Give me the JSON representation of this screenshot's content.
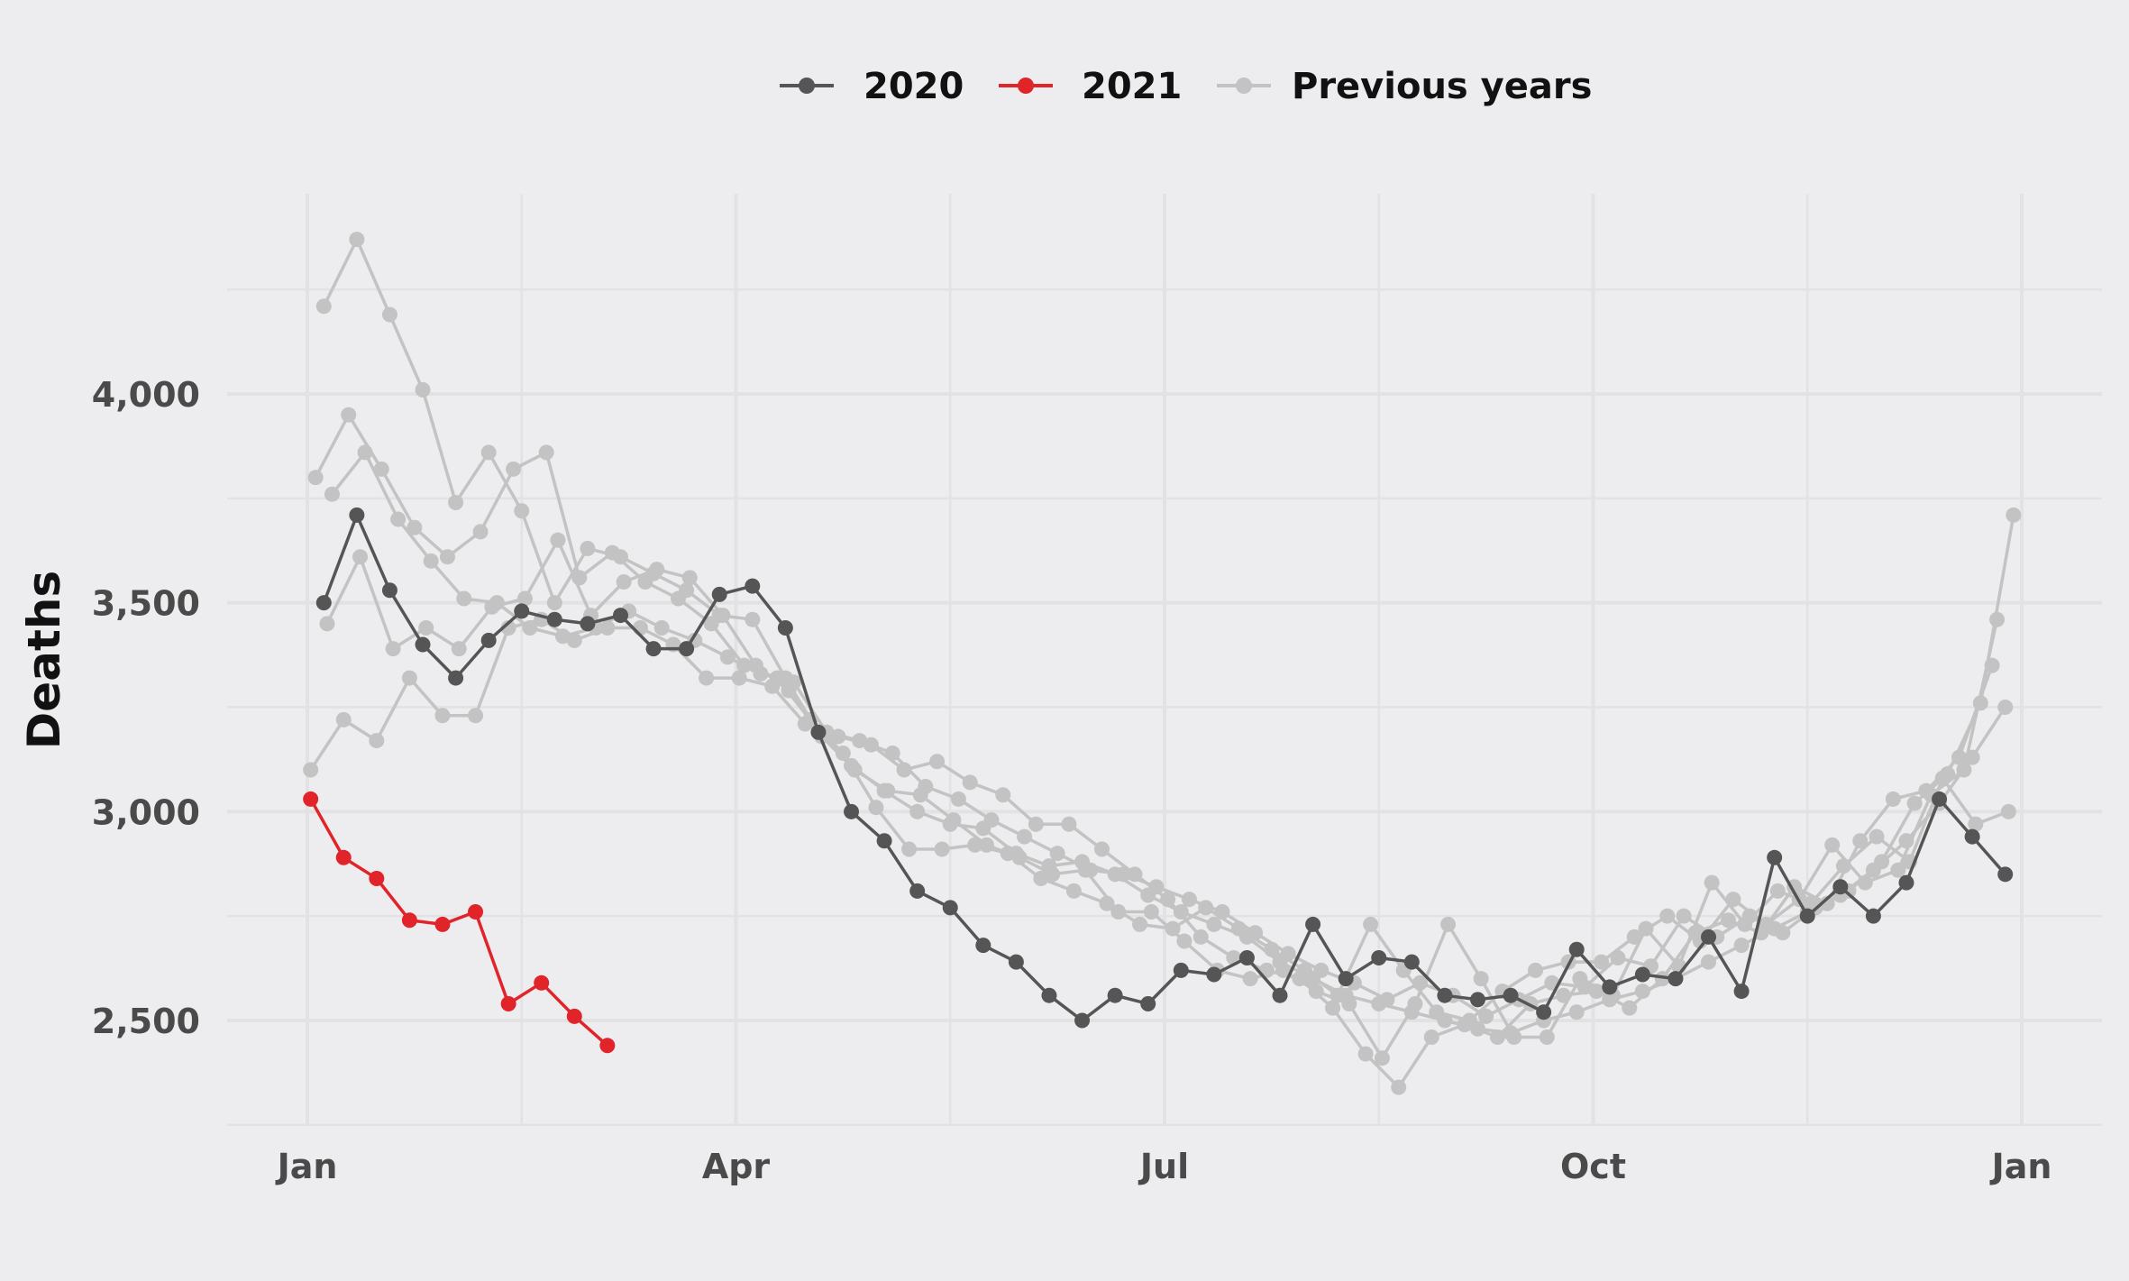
{
  "chart_data": {
    "type": "line",
    "title": "",
    "xlabel": "",
    "ylabel": "Deaths",
    "x_unit": "week of year",
    "xlim": [
      1,
      53
    ],
    "ylim": [
      2230,
      4480
    ],
    "grid": true,
    "legend_position": "top",
    "x_ticks": [
      {
        "label": "Jan",
        "value": 1
      },
      {
        "label": "Apr",
        "value": 14
      },
      {
        "label": "Jul",
        "value": 27
      },
      {
        "label": "Oct",
        "value": 40
      },
      {
        "label": "Jan",
        "value": 53
      }
    ],
    "y_ticks": [
      {
        "label": "2,500",
        "value": 2500
      },
      {
        "label": "3,000",
        "value": 3000
      },
      {
        "label": "3,500",
        "value": 3500
      },
      {
        "label": "4,000",
        "value": 4000
      }
    ],
    "legend": [
      {
        "label": "2020",
        "color": "#555555"
      },
      {
        "label": "2021",
        "color": "#e0242a"
      },
      {
        "label": "Previous years",
        "color": "#c3c3c3"
      }
    ],
    "series": [
      {
        "group": "Previous years",
        "color": "#c3c3c3",
        "x": [
          1.5,
          2.5,
          3.5,
          4.5,
          5.5,
          6.5,
          7.5,
          8.5,
          9.5,
          10.5,
          11.5,
          12.5,
          13.5,
          14.5,
          15.5,
          16.5,
          17.5,
          18.5,
          19.5,
          20.5,
          21.5,
          22.5,
          23.5,
          24.5,
          25.5,
          26.5,
          27.5,
          28.5,
          29.5,
          30.5,
          31.5,
          32.5,
          33.5,
          34.5,
          35.5,
          36.5,
          37.5,
          38.5,
          39.5,
          40.5,
          41.5,
          42.5,
          43.5,
          44.5,
          45.5,
          46.5,
          47.5,
          48.5,
          49.5,
          50.5,
          51.5,
          52.5
        ],
        "y": [
          4210,
          4370,
          4190,
          4010,
          3740,
          3860,
          3720,
          3500,
          3630,
          3610,
          3570,
          3530,
          3470,
          3460,
          3320,
          3190,
          3110,
          3050,
          3000,
          2970,
          2960,
          2900,
          2870,
          2880,
          2850,
          2800,
          2760,
          2730,
          2700,
          2640,
          2600,
          2560,
          2540,
          2520,
          2500,
          2480,
          2470,
          2500,
          2520,
          2550,
          2570,
          2600,
          2640,
          2680,
          2720,
          2760,
          2800,
          2860,
          2930,
          3020,
          3130,
          3250
        ]
      },
      {
        "group": "Previous years",
        "color": "#c3c3c3",
        "x": [
          1.25,
          2.25,
          3.25,
          4.25,
          5.25,
          6.25,
          7.25,
          8.25,
          9.25,
          10.25,
          11.25,
          12.25,
          13.25,
          14.25,
          15.25,
          16.25,
          17.25,
          18.25,
          19.25,
          20.25,
          21.25,
          22.25,
          23.25,
          24.25,
          25.25,
          26.25,
          27.25,
          28.25,
          29.25,
          30.25,
          31.25,
          32.25,
          33.25,
          34.25,
          35.25,
          36.25,
          37.25,
          38.25,
          39.25,
          40.25,
          41.25,
          42.25,
          43.25,
          44.25,
          45.25,
          46.25,
          47.25,
          48.25,
          49.25,
          50.25,
          51.25,
          52.25
        ],
        "y": [
          3800,
          3950,
          3820,
          3680,
          3610,
          3670,
          3820,
          3860,
          3560,
          3620,
          3550,
          3510,
          3450,
          3350,
          3320,
          3220,
          3140,
          3010,
          2910,
          2910,
          2920,
          2900,
          2840,
          2810,
          2780,
          2730,
          2720,
          2770,
          2720,
          2670,
          2620,
          2560,
          2730,
          2620,
          2520,
          2500,
          2570,
          2620,
          2640,
          2640,
          2700,
          2750,
          2690,
          2790,
          2730,
          2790,
          2920,
          2830,
          2860,
          3040,
          3100,
          3460
        ]
      },
      {
        "group": "Previous years",
        "color": "#c3c3c3",
        "x": [
          1.75,
          2.75,
          3.75,
          4.75,
          5.75,
          6.75,
          7.75,
          8.75,
          9.75,
          10.75,
          11.75,
          12.75,
          13.75,
          14.75,
          15.75,
          16.75,
          17.75,
          18.75,
          19.75,
          20.75,
          21.75,
          22.75,
          23.75,
          24.75,
          25.75,
          26.75,
          27.75,
          28.75,
          29.75,
          30.75,
          31.75,
          32.75,
          33.75,
          34.75,
          35.75,
          36.75,
          37.75,
          38.75,
          39.75,
          40.75,
          41.75,
          42.75,
          43.75,
          44.75,
          45.75,
          46.75,
          47.75,
          48.75,
          49.75,
          50.75,
          51.75,
          52.75
        ],
        "y": [
          3760,
          3860,
          3700,
          3600,
          3510,
          3500,
          3440,
          3420,
          3440,
          3480,
          3440,
          3410,
          3370,
          3330,
          3310,
          3190,
          3170,
          3140,
          3060,
          3030,
          2980,
          2940,
          2900,
          2860,
          2850,
          2820,
          2790,
          2760,
          2710,
          2660,
          2620,
          2590,
          2550,
          2590,
          2560,
          2510,
          2550,
          2590,
          2580,
          2650,
          2630,
          2750,
          2700,
          2750,
          2710,
          2770,
          2810,
          2880,
          3020,
          3090,
          3260,
          3710
        ]
      },
      {
        "group": "Previous years",
        "color": "#c3c3c3",
        "x": [
          1.1,
          2.1,
          3.1,
          4.1,
          5.1,
          6.1,
          7.1,
          8.1,
          9.1,
          10.1,
          11.1,
          12.1,
          13.1,
          14.1,
          15.1,
          16.1,
          17.1,
          18.1,
          19.1,
          20.1,
          21.1,
          22.1,
          23.1,
          24.1,
          25.1,
          26.1,
          27.1,
          28.1,
          29.1,
          30.1,
          31.1,
          32.1,
          33.1,
          34.1,
          35.1,
          36.1,
          37.1,
          38.1,
          39.1,
          40.1,
          41.1,
          42.1,
          43.1,
          44.1,
          45.1,
          46.1,
          47.1,
          48.1,
          49.1,
          50.1,
          51.1,
          52.1
        ],
        "y": [
          3100,
          3220,
          3170,
          3320,
          3230,
          3230,
          3440,
          3460,
          3410,
          3440,
          3440,
          3400,
          3320,
          3320,
          3300,
          3210,
          3180,
          3160,
          3100,
          3120,
          3070,
          3040,
          2970,
          2970,
          2910,
          2850,
          2790,
          2700,
          2650,
          2620,
          2600,
          2530,
          2420,
          2340,
          2460,
          2490,
          2460,
          2540,
          2560,
          2570,
          2530,
          2600,
          2710,
          2740,
          2710,
          2820,
          2780,
          2930,
          3030,
          3050,
          3130,
          3350
        ]
      },
      {
        "group": "Previous years",
        "color": "#c3c3c3",
        "x": [
          1.6,
          2.6,
          3.6,
          4.6,
          5.6,
          6.6,
          7.6,
          8.6,
          9.6,
          10.6,
          11.6,
          12.6,
          13.6,
          14.6,
          15.6,
          16.6,
          17.6,
          18.6,
          19.6,
          20.6,
          21.6,
          22.6,
          23.6,
          24.6,
          25.6,
          26.6,
          27.6,
          28.6,
          29.6,
          30.6,
          31.6,
          32.6,
          33.6,
          34.6,
          35.6,
          36.6,
          37.6,
          38.6,
          39.6,
          40.6,
          41.6,
          42.6,
          43.6,
          44.6,
          45.6,
          46.6,
          47.6,
          48.6,
          49.6,
          50.6,
          51.6,
          52.6
        ],
        "y": [
          3450,
          3610,
          3390,
          3440,
          3390,
          3490,
          3510,
          3650,
          3470,
          3550,
          3580,
          3560,
          3470,
          3350,
          3290,
          3180,
          3100,
          3050,
          3040,
          2980,
          2920,
          2890,
          2850,
          2860,
          2760,
          2760,
          2690,
          2620,
          2600,
          2620,
          2570,
          2540,
          2410,
          2540,
          2730,
          2600,
          2460,
          2460,
          2600,
          2560,
          2720,
          2630,
          2830,
          2730,
          2810,
          2780,
          2870,
          2940,
          2880,
          3080,
          2970,
          3000
        ]
      },
      {
        "group": "2020",
        "color": "#555555",
        "x": [
          1.5,
          2.5,
          3.5,
          4.5,
          5.5,
          6.5,
          7.5,
          8.5,
          9.5,
          10.5,
          11.5,
          12.5,
          13.5,
          14.5,
          15.5,
          16.5,
          17.5,
          18.5,
          19.5,
          20.5,
          21.5,
          22.5,
          23.5,
          24.5,
          25.5,
          26.5,
          27.5,
          28.5,
          29.5,
          30.5,
          31.5,
          32.5,
          33.5,
          34.5,
          35.5,
          36.5,
          37.5,
          38.5,
          39.5,
          40.5,
          41.5,
          42.5,
          43.5,
          44.5,
          45.5,
          46.5,
          47.5,
          48.5,
          49.5,
          50.5,
          51.5,
          52.5
        ],
        "y": [
          3500,
          3710,
          3530,
          3400,
          3320,
          3410,
          3480,
          3460,
          3450,
          3470,
          3390,
          3390,
          3520,
          3540,
          3440,
          3190,
          3000,
          2930,
          2810,
          2770,
          2680,
          2640,
          2560,
          2500,
          2560,
          2540,
          2620,
          2610,
          2650,
          2560,
          2730,
          2600,
          2650,
          2640,
          2560,
          2550,
          2560,
          2520,
          2670,
          2580,
          2610,
          2600,
          2700,
          2570,
          2890,
          2750,
          2820,
          2750,
          2830,
          3030,
          2940,
          2850
        ]
      },
      {
        "group": "2021",
        "color": "#e0242a",
        "x": [
          1.1,
          2.1,
          3.1,
          4.1,
          5.1,
          6.1,
          7.1,
          8.1,
          9.1,
          10.1
        ],
        "y": [
          3030,
          2890,
          2840,
          2740,
          2730,
          2760,
          2540,
          2590,
          2510,
          2440
        ]
      }
    ]
  }
}
